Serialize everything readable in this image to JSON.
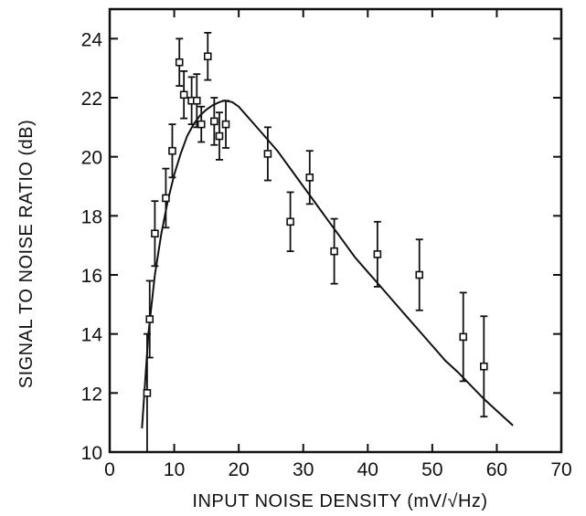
{
  "chart_data": {
    "type": "scatter",
    "title": "",
    "xlabel": "INPUT NOISE DENSITY (mV/√Hz)",
    "ylabel": "SIGNAL TO NOISE RATIO (dB)",
    "xlim": [
      0,
      70
    ],
    "ylim": [
      10,
      25
    ],
    "x_ticks": [
      0,
      10,
      20,
      30,
      40,
      50,
      60,
      70
    ],
    "y_ticks": [
      10,
      12,
      14,
      16,
      18,
      20,
      22,
      24
    ],
    "grid": false,
    "legend": "none",
    "series": [
      {
        "kind": "points_with_error_bars",
        "points": [
          {
            "x": 5.8,
            "y": 12.0,
            "err": 2.0
          },
          {
            "x": 6.2,
            "y": 14.5,
            "err": 1.3
          },
          {
            "x": 7.0,
            "y": 17.4,
            "err": 1.1
          },
          {
            "x": 8.7,
            "y": 18.6,
            "err": 1.0
          },
          {
            "x": 9.7,
            "y": 20.2,
            "err": 0.9
          },
          {
            "x": 10.8,
            "y": 23.2,
            "err": 0.8
          },
          {
            "x": 11.5,
            "y": 22.1,
            "err": 0.8
          },
          {
            "x": 12.7,
            "y": 21.9,
            "err": 0.8
          },
          {
            "x": 13.5,
            "y": 21.9,
            "err": 0.9
          },
          {
            "x": 14.2,
            "y": 21.1,
            "err": 0.6
          },
          {
            "x": 15.2,
            "y": 23.4,
            "err": 0.8
          },
          {
            "x": 16.2,
            "y": 21.2,
            "err": 0.8
          },
          {
            "x": 17.0,
            "y": 20.7,
            "err": 0.8
          },
          {
            "x": 18.0,
            "y": 21.1,
            "err": 0.8
          },
          {
            "x": 24.5,
            "y": 20.1,
            "err": 0.9
          },
          {
            "x": 28.0,
            "y": 17.8,
            "err": 1.0
          },
          {
            "x": 31.0,
            "y": 19.3,
            "err": 0.9
          },
          {
            "x": 34.8,
            "y": 16.8,
            "err": 1.1
          },
          {
            "x": 41.5,
            "y": 16.7,
            "err": 1.1
          },
          {
            "x": 48.0,
            "y": 16.0,
            "err": 1.2
          },
          {
            "x": 54.8,
            "y": 13.9,
            "err": 1.5
          },
          {
            "x": 58.0,
            "y": 12.9,
            "err": 1.7
          }
        ]
      },
      {
        "kind": "fitted_curve",
        "x": [
          5,
          6,
          7,
          8,
          9,
          10,
          11,
          12,
          13,
          14,
          15,
          16,
          17,
          17.8,
          19,
          20,
          22,
          24,
          26,
          28,
          30,
          32,
          34,
          36,
          38,
          40,
          42,
          44,
          46,
          48,
          50,
          52,
          54,
          56,
          58,
          60,
          62.5
        ],
        "y": [
          10.8,
          14.0,
          16.0,
          17.4,
          18.5,
          19.4,
          20.1,
          20.7,
          21.1,
          21.4,
          21.6,
          21.75,
          21.85,
          21.9,
          21.85,
          21.7,
          21.2,
          20.7,
          20.2,
          19.6,
          19.0,
          18.4,
          17.8,
          17.2,
          16.6,
          16.1,
          15.6,
          15.1,
          14.6,
          14.1,
          13.6,
          13.1,
          12.7,
          12.25,
          11.8,
          11.4,
          10.9
        ]
      }
    ]
  }
}
